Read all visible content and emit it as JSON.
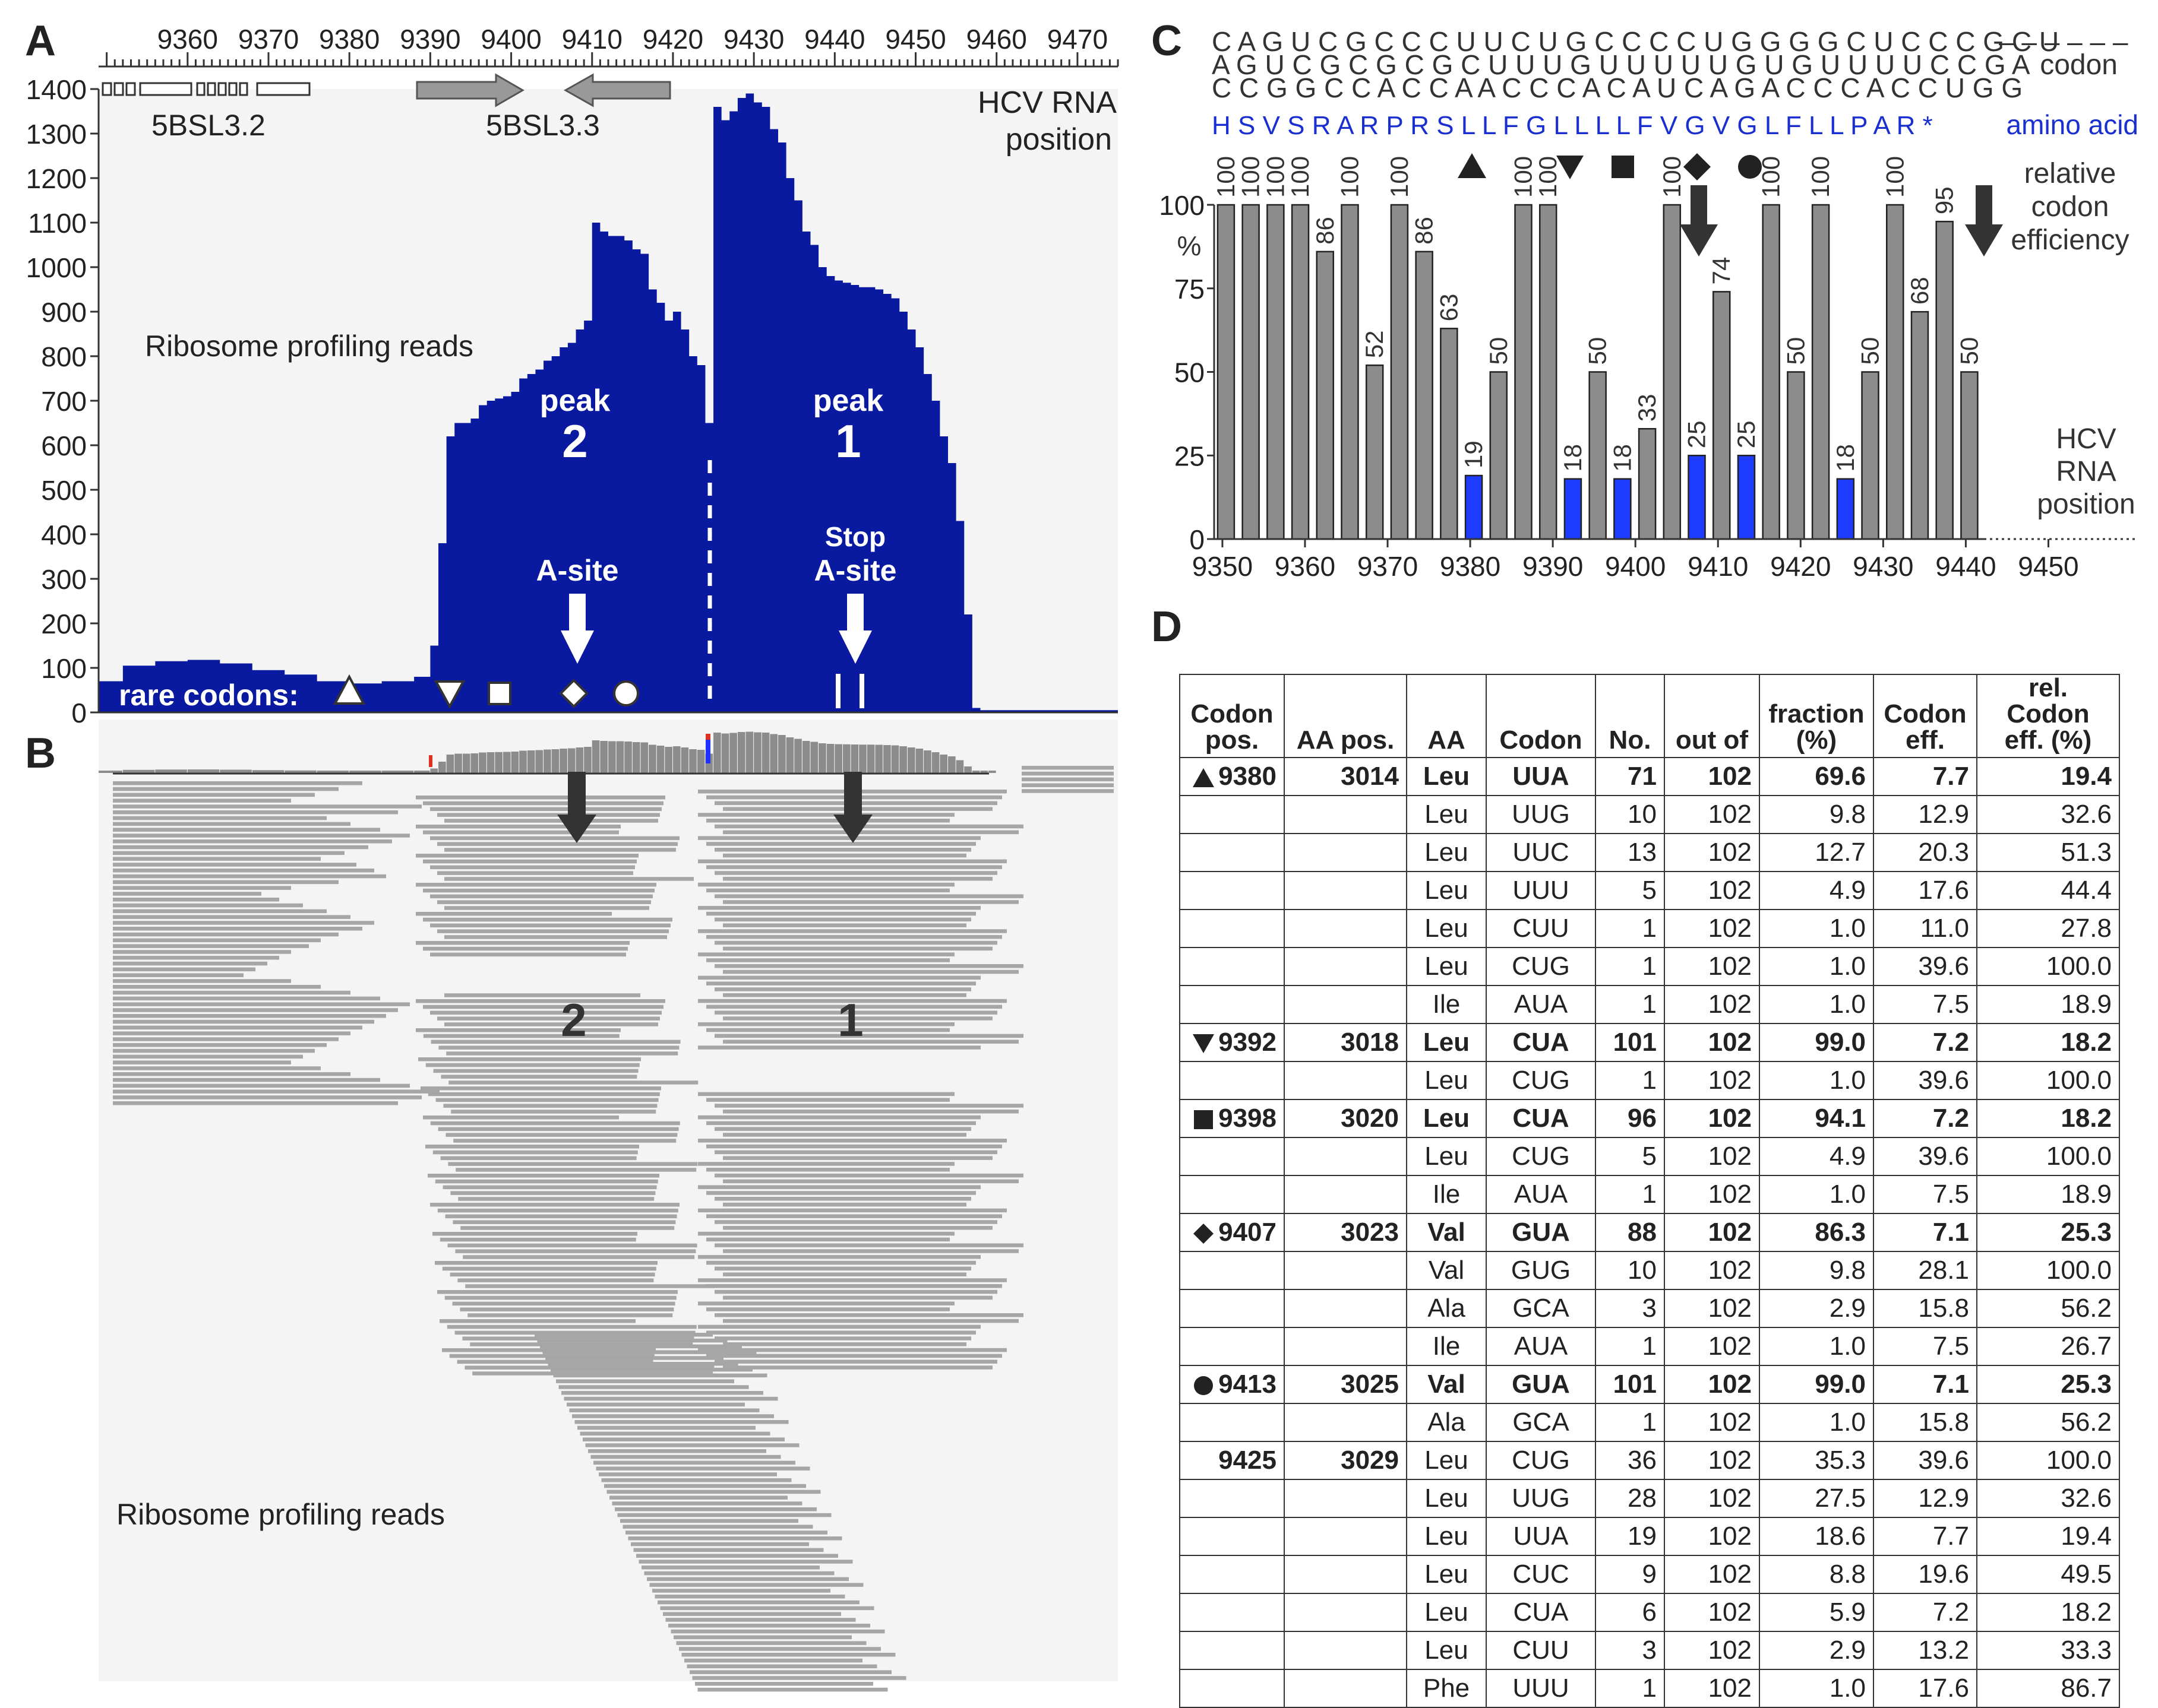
{
  "panels": {
    "a": {
      "letter": "A",
      "position_ticks": [
        "9360",
        "9370",
        "9380",
        "9390",
        "9400",
        "9410",
        "9420",
        "9430",
        "9440",
        "9450",
        "9460",
        "9470"
      ],
      "y_ticks": [
        "1400",
        "1300",
        "1200",
        "1100",
        "1000",
        "900",
        "800",
        "700",
        "600",
        "500",
        "400",
        "300",
        "200",
        "100",
        "0"
      ],
      "y_label": "Ribosome profiling reads",
      "axis_title_line1": "HCV RNA",
      "axis_title_line2": "position",
      "element_5bsl32": "5BSL3.2",
      "element_5bsl33": "5BSL3.3",
      "peak2_label": "peak",
      "peak2_num": "2",
      "peak1_label": "peak",
      "peak1_num": "1",
      "asite_label": "A-site",
      "stop_label": "Stop",
      "stop_asite_label": "A-site",
      "rare_codons_label": "rare codons:",
      "fill_color": "#0a1aa0"
    },
    "b": {
      "letter": "B",
      "label_2": "2",
      "label_1": "1",
      "reads_label": "Ribosome profiling reads",
      "read_color": "#a6a6a6"
    },
    "c": {
      "letter": "C",
      "seq_row1": "C A G U C G C C C U U C U G C C C C U G G G G C U C C C G C U",
      "seq_row1_dashes": "– – – – – –",
      "seq_row2": "A G U C G C G C G C U U U G U U U U U G U G U U U U C C G A",
      "seq_row3": "C C G G C C A C C A A C C C A C A U C A G A C C C A C C U G G",
      "codon_label": "codon",
      "amino_acids": "H S V S R A R P R S L L  F G L  L  L  L  F V G V G L  F  L  L  P A R  *",
      "amino_acid_label": "amino acid",
      "rel_line1": "relative",
      "rel_line2": "codon",
      "rel_line3": "efficiency",
      "pct": "%",
      "y_ticks": [
        "100",
        "75",
        "50",
        "25",
        "0"
      ],
      "x_ticks": [
        "9350",
        "9360",
        "9370",
        "9380",
        "9390",
        "9400",
        "9410",
        "9420",
        "9430",
        "9440",
        "9450"
      ],
      "pos_line1": "HCV",
      "pos_line2": "RNA",
      "pos_line3": "position",
      "accent_blue": "#1e3cff",
      "aa_color": "#1a2fd0"
    },
    "d": {
      "letter": "D",
      "headers": [
        [
          "Codon",
          "pos."
        ],
        [
          "",
          "AA pos."
        ],
        [
          "",
          "AA"
        ],
        [
          "",
          "Codon"
        ],
        [
          "",
          "No."
        ],
        [
          "",
          "out of"
        ],
        [
          "fraction",
          "(%)"
        ],
        [
          "Codon",
          "eff."
        ],
        [
          "rel. Codon",
          "eff. (%)"
        ]
      ],
      "rows": [
        {
          "sym": "triangle-up",
          "pos": "9380",
          "aapos": "3014",
          "aa": "Leu",
          "codon": "UUA",
          "no": "71",
          "out": "102",
          "frac": "69.6",
          "eff": "7.7",
          "rel": "19.4",
          "bold": true
        },
        {
          "sym": "",
          "pos": "",
          "aapos": "",
          "aa": "Leu",
          "codon": "UUG",
          "no": "10",
          "out": "102",
          "frac": "9.8",
          "eff": "12.9",
          "rel": "32.6",
          "bold": false
        },
        {
          "sym": "",
          "pos": "",
          "aapos": "",
          "aa": "Leu",
          "codon": "UUC",
          "no": "13",
          "out": "102",
          "frac": "12.7",
          "eff": "20.3",
          "rel": "51.3",
          "bold": false
        },
        {
          "sym": "",
          "pos": "",
          "aapos": "",
          "aa": "Leu",
          "codon": "UUU",
          "no": "5",
          "out": "102",
          "frac": "4.9",
          "eff": "17.6",
          "rel": "44.4",
          "bold": false
        },
        {
          "sym": "",
          "pos": "",
          "aapos": "",
          "aa": "Leu",
          "codon": "CUU",
          "no": "1",
          "out": "102",
          "frac": "1.0",
          "eff": "11.0",
          "rel": "27.8",
          "bold": false
        },
        {
          "sym": "",
          "pos": "",
          "aapos": "",
          "aa": "Leu",
          "codon": "CUG",
          "no": "1",
          "out": "102",
          "frac": "1.0",
          "eff": "39.6",
          "rel": "100.0",
          "bold": false
        },
        {
          "sym": "",
          "pos": "",
          "aapos": "",
          "aa": "Ile",
          "codon": "AUA",
          "no": "1",
          "out": "102",
          "frac": "1.0",
          "eff": "7.5",
          "rel": "18.9",
          "bold": false
        },
        {
          "sym": "triangle-down",
          "pos": "9392",
          "aapos": "3018",
          "aa": "Leu",
          "codon": "CUA",
          "no": "101",
          "out": "102",
          "frac": "99.0",
          "eff": "7.2",
          "rel": "18.2",
          "bold": true
        },
        {
          "sym": "",
          "pos": "",
          "aapos": "",
          "aa": "Leu",
          "codon": "CUG",
          "no": "1",
          "out": "102",
          "frac": "1.0",
          "eff": "39.6",
          "rel": "100.0",
          "bold": false
        },
        {
          "sym": "square",
          "pos": "9398",
          "aapos": "3020",
          "aa": "Leu",
          "codon": "CUA",
          "no": "96",
          "out": "102",
          "frac": "94.1",
          "eff": "7.2",
          "rel": "18.2",
          "bold": true
        },
        {
          "sym": "",
          "pos": "",
          "aapos": "",
          "aa": "Leu",
          "codon": "CUG",
          "no": "5",
          "out": "102",
          "frac": "4.9",
          "eff": "39.6",
          "rel": "100.0",
          "bold": false
        },
        {
          "sym": "",
          "pos": "",
          "aapos": "",
          "aa": "Ile",
          "codon": "AUA",
          "no": "1",
          "out": "102",
          "frac": "1.0",
          "eff": "7.5",
          "rel": "18.9",
          "bold": false
        },
        {
          "sym": "diamond",
          "pos": "9407",
          "aapos": "3023",
          "aa": "Val",
          "codon": "GUA",
          "no": "88",
          "out": "102",
          "frac": "86.3",
          "eff": "7.1",
          "rel": "25.3",
          "bold": true
        },
        {
          "sym": "",
          "pos": "",
          "aapos": "",
          "aa": "Val",
          "codon": "GUG",
          "no": "10",
          "out": "102",
          "frac": "9.8",
          "eff": "28.1",
          "rel": "100.0",
          "bold": false
        },
        {
          "sym": "",
          "pos": "",
          "aapos": "",
          "aa": "Ala",
          "codon": "GCA",
          "no": "3",
          "out": "102",
          "frac": "2.9",
          "eff": "15.8",
          "rel": "56.2",
          "bold": false
        },
        {
          "sym": "",
          "pos": "",
          "aapos": "",
          "aa": "Ile",
          "codon": "AUA",
          "no": "1",
          "out": "102",
          "frac": "1.0",
          "eff": "7.5",
          "rel": "26.7",
          "bold": false
        },
        {
          "sym": "circle",
          "pos": "9413",
          "aapos": "3025",
          "aa": "Val",
          "codon": "GUA",
          "no": "101",
          "out": "102",
          "frac": "99.0",
          "eff": "7.1",
          "rel": "25.3",
          "bold": true
        },
        {
          "sym": "",
          "pos": "",
          "aapos": "",
          "aa": "Ala",
          "codon": "GCA",
          "no": "1",
          "out": "102",
          "frac": "1.0",
          "eff": "15.8",
          "rel": "56.2",
          "bold": false
        },
        {
          "sym": "",
          "pos": "9425",
          "aapos": "3029",
          "aa": "Leu",
          "codon": "CUG",
          "no": "36",
          "out": "102",
          "frac": "35.3",
          "eff": "39.6",
          "rel": "100.0",
          "bold": false,
          "posbold": true
        },
        {
          "sym": "",
          "pos": "",
          "aapos": "",
          "aa": "Leu",
          "codon": "UUG",
          "no": "28",
          "out": "102",
          "frac": "27.5",
          "eff": "12.9",
          "rel": "32.6",
          "bold": false
        },
        {
          "sym": "",
          "pos": "",
          "aapos": "",
          "aa": "Leu",
          "codon": "UUA",
          "no": "19",
          "out": "102",
          "frac": "18.6",
          "eff": "7.7",
          "rel": "19.4",
          "bold": false
        },
        {
          "sym": "",
          "pos": "",
          "aapos": "",
          "aa": "Leu",
          "codon": "CUC",
          "no": "9",
          "out": "102",
          "frac": "8.8",
          "eff": "19.6",
          "rel": "49.5",
          "bold": false
        },
        {
          "sym": "",
          "pos": "",
          "aapos": "",
          "aa": "Leu",
          "codon": "CUA",
          "no": "6",
          "out": "102",
          "frac": "5.9",
          "eff": "7.2",
          "rel": "18.2",
          "bold": false
        },
        {
          "sym": "",
          "pos": "",
          "aapos": "",
          "aa": "Leu",
          "codon": "CUU",
          "no": "3",
          "out": "102",
          "frac": "2.9",
          "eff": "13.2",
          "rel": "33.3",
          "bold": false
        },
        {
          "sym": "",
          "pos": "",
          "aapos": "",
          "aa": "Phe",
          "codon": "UUU",
          "no": "1",
          "out": "102",
          "frac": "1.0",
          "eff": "17.6",
          "rel": "86.7",
          "bold": false
        }
      ]
    }
  },
  "chart_data": [
    {
      "type": "area",
      "panel": "A",
      "x_axis": "HCV RNA position",
      "xlim": [
        9349,
        9475
      ],
      "ylabel": "Ribosome profiling reads",
      "ylim": [
        0,
        1400
      ],
      "x": [
        9349,
        9352,
        9356,
        9360,
        9364,
        9368,
        9372,
        9376,
        9380,
        9384,
        9388,
        9390,
        9391,
        9392,
        9393,
        9394,
        9395,
        9396,
        9397,
        9398,
        9399,
        9400,
        9401,
        9402,
        9403,
        9404,
        9405,
        9406,
        9407,
        9408,
        9409,
        9410,
        9411,
        9412,
        9413,
        9414,
        9415,
        9416,
        9417,
        9418,
        9419,
        9420,
        9421,
        9422,
        9423,
        9424,
        9425,
        9426,
        9427,
        9428,
        9429,
        9430,
        9431,
        9432,
        9433,
        9434,
        9435,
        9436,
        9437,
        9438,
        9439,
        9440,
        9441,
        9442,
        9443,
        9444,
        9445,
        9446,
        9447,
        9448,
        9449,
        9450,
        9451,
        9452,
        9453,
        9454,
        9455,
        9456,
        9457,
        9458,
        9459,
        9460,
        9462,
        9466,
        9470,
        9475
      ],
      "y": [
        70,
        105,
        115,
        118,
        110,
        95,
        85,
        70,
        65,
        70,
        80,
        150,
        380,
        620,
        650,
        650,
        660,
        690,
        700,
        705,
        710,
        720,
        750,
        760,
        770,
        790,
        800,
        820,
        830,
        860,
        880,
        1100,
        1080,
        1070,
        1070,
        1060,
        1040,
        1030,
        950,
        920,
        880,
        900,
        860,
        800,
        780,
        650,
        1360,
        1330,
        1350,
        1380,
        1390,
        1370,
        1360,
        1310,
        1280,
        1200,
        1150,
        1080,
        1050,
        1000,
        980,
        970,
        965,
        960,
        955,
        955,
        950,
        940,
        930,
        900,
        860,
        820,
        760,
        700,
        620,
        560,
        430,
        220,
        10,
        5,
        5,
        5,
        5,
        5,
        5,
        5
      ],
      "annotations": [
        {
          "label": "5BSL3.2",
          "x_range": [
            9350,
            9374
          ]
        },
        {
          "label": "5BSL3.3",
          "x_range": [
            9388,
            9420
          ]
        },
        {
          "label": "peak 2",
          "x": 9408
        },
        {
          "label": "peak 1",
          "x": 9441
        },
        {
          "label": "A-site",
          "x": 9408
        },
        {
          "label": "Stop A-site",
          "x": 9441
        },
        {
          "label": "rare codons",
          "x": [
            9380,
            9392,
            9398,
            9407,
            9413
          ]
        }
      ]
    },
    {
      "type": "bar",
      "panel": "C",
      "title": "relative codon efficiency",
      "ylabel": "%",
      "xlabel": "HCV RNA position",
      "ylim": [
        0,
        100
      ],
      "xlim": [
        9349,
        9468
      ],
      "x": [
        9350,
        9353,
        9356,
        9359,
        9362,
        9365,
        9368,
        9371,
        9374,
        9377,
        9380,
        9383,
        9386,
        9389,
        9392,
        9395,
        9398,
        9401,
        9404,
        9407,
        9410,
        9413,
        9416,
        9419,
        9422,
        9425,
        9428,
        9431,
        9434,
        9437,
        9440
      ],
      "values": [
        100,
        100,
        100,
        100,
        86,
        100,
        52,
        100,
        86,
        63,
        19,
        50,
        100,
        100,
        18,
        50,
        18,
        33,
        100,
        25,
        74,
        25,
        100,
        50,
        100,
        18,
        50,
        100,
        68,
        95,
        50
      ],
      "highlight_blue": [
        9380,
        9392,
        9398,
        9407,
        9413,
        9425
      ],
      "data_labels": [
        "100",
        "100",
        "100",
        "100",
        "86",
        "100",
        "52",
        "100",
        "86",
        "63",
        "19",
        "50",
        "100",
        "100",
        "18",
        "50",
        "18",
        "33",
        "100",
        "25",
        "74",
        "25",
        "100",
        "50",
        "100",
        "18",
        "50",
        "100",
        "68",
        "95",
        "50"
      ]
    }
  ]
}
